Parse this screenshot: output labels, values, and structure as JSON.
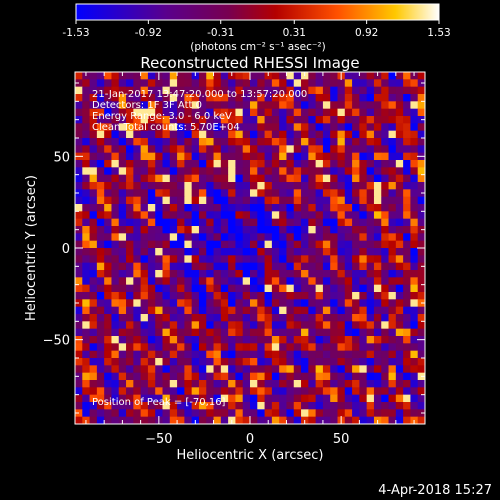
{
  "colorbar": {
    "ticks": [
      "-1.53",
      "-0.92",
      "-0.31",
      "0.31",
      "0.92",
      "1.53"
    ],
    "units": "(photons cm⁻² s⁻¹ asec⁻²)",
    "range": [
      -1.53,
      1.53
    ]
  },
  "chart_data": {
    "type": "heatmap",
    "title": "Reconstructed RHESSI Image",
    "xlabel": "Heliocentric X (arcsec)",
    "ylabel": "Heliocentric Y (arcsec)",
    "xlim": [
      -96,
      96
    ],
    "ylim": [
      -96,
      96
    ],
    "xticks": [
      -50,
      0,
      50
    ],
    "yticks": [
      -50,
      0,
      50
    ],
    "pixel_size_arcsec": 4,
    "peak": [
      -70,
      16
    ],
    "colormap": "rhessi-color-table-5 (blue-purple-red-orange-yellow-white)",
    "annotations": {
      "time": "21-Jan-2017 13:47:20.000 to 13:57:20.000",
      "detectors": "Detectors: 1F 3F  Att 0",
      "energy": "Energy Range: 3.0 - 6.0 keV",
      "method": "Clean    Total counts: 5.70E+04",
      "peak": "Position of Peak = [-70,16]"
    }
  },
  "footer": {
    "date": "4-Apr-2018 15:27"
  }
}
